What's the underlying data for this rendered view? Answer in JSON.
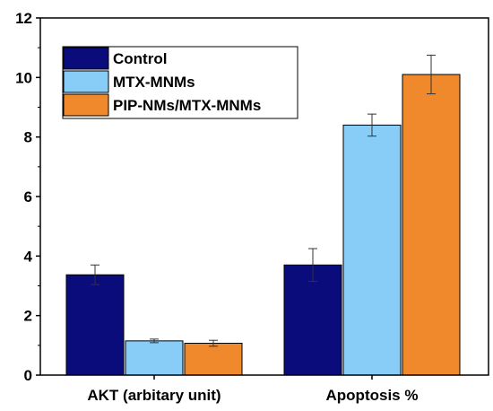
{
  "chart_data": {
    "type": "bar",
    "categories": [
      "AKT (arbitary unit)",
      "Apoptosis %"
    ],
    "ylim": [
      0,
      12
    ],
    "yticks": [
      0,
      2,
      4,
      6,
      8,
      10,
      12
    ],
    "ytick_labels": [
      "0",
      "2",
      "4",
      "6",
      "8",
      "10",
      "12"
    ],
    "legend_position": "top-left",
    "series": [
      {
        "name": "Control",
        "color": "#0b0c7c",
        "values": [
          3.37,
          3.7
        ],
        "errors": [
          0.33,
          0.55
        ]
      },
      {
        "name": "MTX-MNMs",
        "color": "#87cdf8",
        "values": [
          1.15,
          8.4
        ],
        "errors": [
          0.06,
          0.37
        ]
      },
      {
        "name": "PIP-NMs/MTX-MNMs",
        "color": "#f0882c",
        "values": [
          1.07,
          10.1
        ],
        "errors": [
          0.1,
          0.65
        ]
      }
    ]
  }
}
